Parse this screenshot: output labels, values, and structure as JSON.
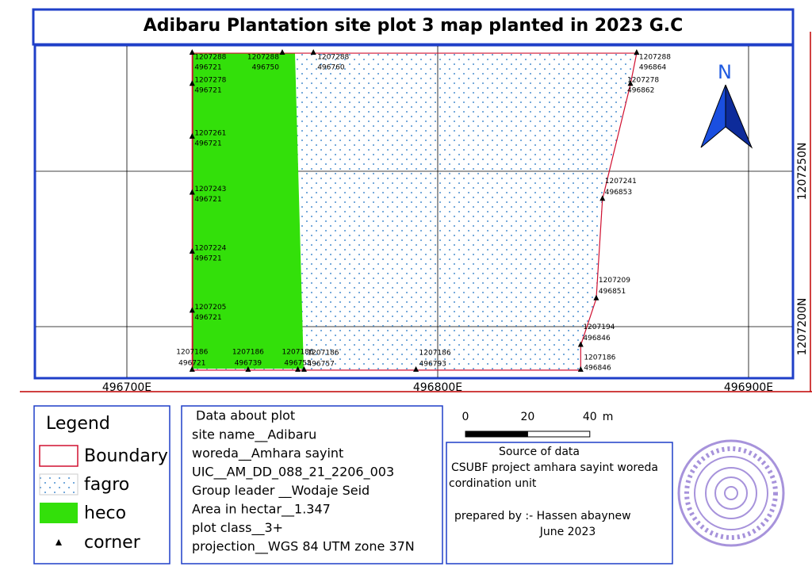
{
  "title": "Adibaru Plantation site plot 3 map planted in 2023 G.C",
  "map": {
    "x_grid": [
      {
        "value": 496700,
        "label": "496700E"
      },
      {
        "value": 496800,
        "label": "496800E"
      },
      {
        "value": 496900,
        "label": "496900E"
      }
    ],
    "y_grid": [
      {
        "value": 1207250,
        "label": "1207250N"
      },
      {
        "value": 1207200,
        "label": "1207200N"
      }
    ],
    "north_label": "N",
    "corners": [
      {
        "northing": 1207288,
        "easting": 496721
      },
      {
        "northing": 1207278,
        "easting": 496721
      },
      {
        "northing": 1207261,
        "easting": 496721
      },
      {
        "northing": 1207243,
        "easting": 496721
      },
      {
        "northing": 1207224,
        "easting": 496721
      },
      {
        "northing": 1207205,
        "easting": 496721
      },
      {
        "northing": 1207186,
        "easting": 496721
      },
      {
        "northing": 1207186,
        "easting": 496739
      },
      {
        "northing": 1207186,
        "easting": 496755
      },
      {
        "northing": 1207186,
        "easting": 496757
      },
      {
        "northing": 1207186,
        "easting": 496793
      },
      {
        "northing": 1207186,
        "easting": 496846
      },
      {
        "northing": 1207194,
        "easting": 496846
      },
      {
        "northing": 1207209,
        "easting": 496851
      },
      {
        "northing": 1207241,
        "easting": 496853
      },
      {
        "northing": 1207278,
        "easting": 496862
      },
      {
        "northing": 1207288,
        "easting": 496864
      },
      {
        "northing": 1207288,
        "easting": 496760
      },
      {
        "northing": 1207288,
        "easting": 496750
      }
    ]
  },
  "legend": {
    "title": "Legend",
    "items": [
      "Boundary",
      "fagro",
      "heco",
      "corner"
    ]
  },
  "plot_info": {
    "heading": "Data about plot",
    "lines": [
      "site name__Adibaru",
      "woreda__Amhara sayint",
      "UIC__AM_DD_088_21_2206_003",
      "Group leader __Wodaje Seid",
      "Area in hectar__1.347",
      "plot class__3+",
      "projection__WGS 84 UTM zone 37N"
    ]
  },
  "scale_bar": {
    "ticks": [
      0,
      20,
      40
    ],
    "unit": "m"
  },
  "source": {
    "heading": "Source of data",
    "lines": [
      "CSUBF project amhara sayint woreda",
      "cordination unit"
    ],
    "prepared_by": "prepared by :- Hassen abaynew",
    "date": "June 2023"
  }
}
